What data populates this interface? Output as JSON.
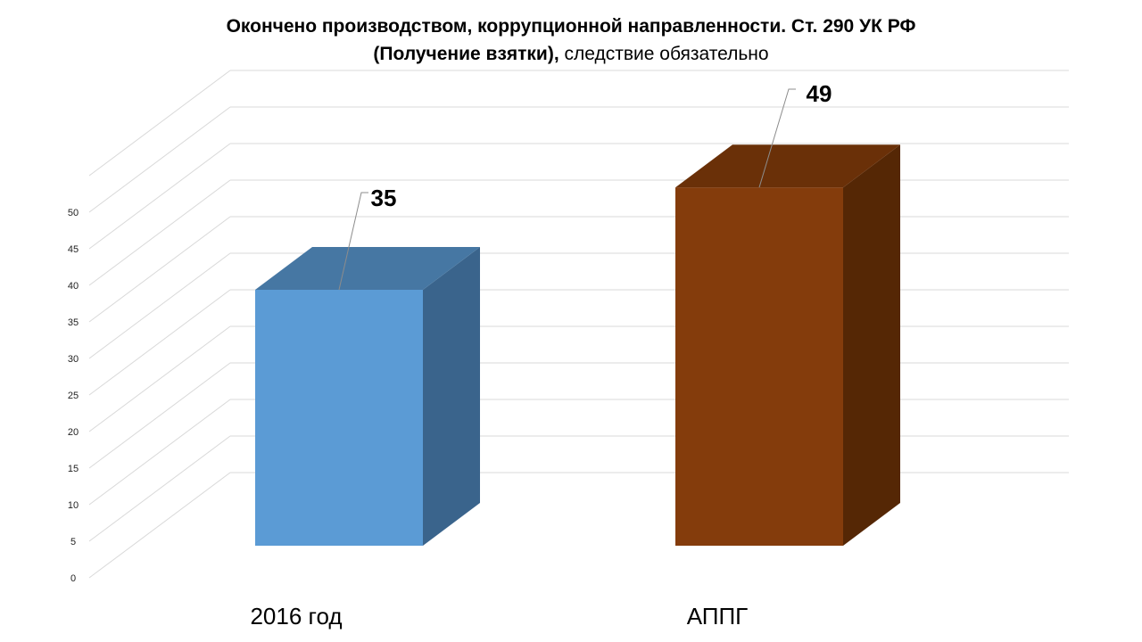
{
  "title_line1": "Окончено производством, коррупционной направленности. Ст. 290 УК РФ",
  "title_line2_bold": "(Получение взятки),",
  "title_line2_normal": "следствие обязательно",
  "colors": {
    "bar1_front": "#5b9bd5",
    "bar1_side": "#3a648c",
    "bar1_top": "#4677a3",
    "bar2_front": "#843c0c",
    "bar2_side": "#552705",
    "bar2_top": "#6a3008"
  },
  "chart_data": {
    "type": "bar",
    "title": "Окончено производством, коррупционной направленности. Ст. 290 УК РФ (Получение взятки), следствие обязательно",
    "categories": [
      "2016 год",
      "АППГ"
    ],
    "values": [
      35,
      49
    ],
    "data_labels": [
      "35",
      "49"
    ],
    "ylim": [
      0,
      50
    ],
    "yticks": [
      "0",
      "5",
      "10",
      "15",
      "20",
      "25",
      "30",
      "35",
      "40",
      "45",
      "50"
    ],
    "grid": true,
    "legend": "none",
    "style": "3d"
  }
}
